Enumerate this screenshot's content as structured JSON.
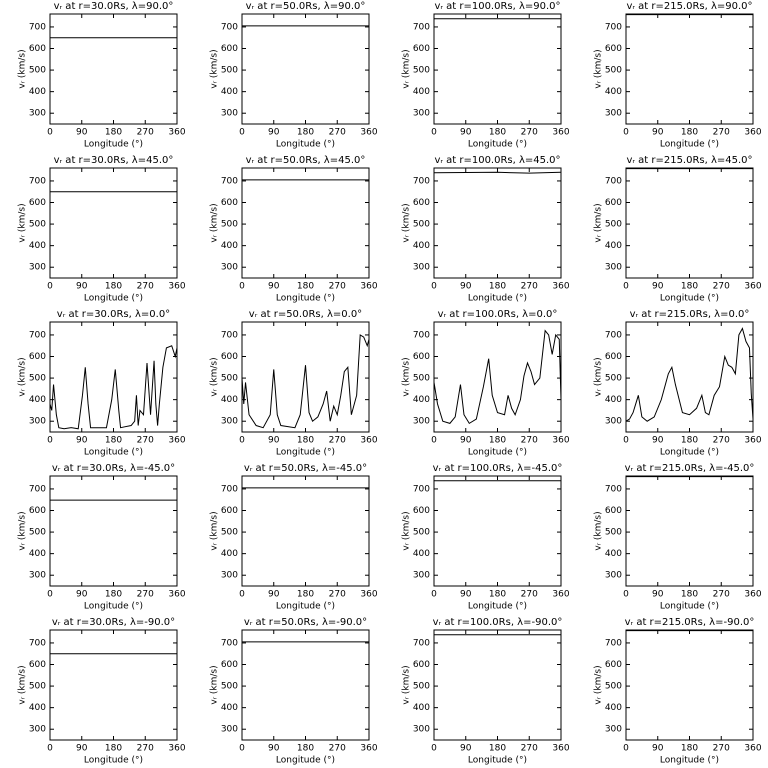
{
  "chart_data": [
    {
      "type": "line",
      "title": "vᵣ at r=30.0Rs, λ=90.0°",
      "xlabel": "Longitude (°)",
      "ylabel": "vᵣ (km/s)",
      "x": [
        0,
        360
      ],
      "values": [
        650,
        650
      ],
      "color": "#000000",
      "xlim": [
        0,
        360
      ],
      "ylim": [
        250,
        760
      ],
      "xticks": [
        0,
        90,
        180,
        270,
        360
      ],
      "yticks": [
        300,
        400,
        500,
        600,
        700
      ]
    },
    {
      "type": "line",
      "title": "vᵣ at r=50.0Rs, λ=90.0°",
      "xlabel": "Longitude (°)",
      "ylabel": "vᵣ (km/s)",
      "x": [
        0,
        360
      ],
      "values": [
        705,
        705
      ],
      "color": "#000000",
      "xlim": [
        0,
        360
      ],
      "ylim": [
        250,
        760
      ],
      "xticks": [
        0,
        90,
        180,
        270,
        360
      ],
      "yticks": [
        300,
        400,
        500,
        600,
        700
      ]
    },
    {
      "type": "line",
      "title": "vᵣ at r=100.0Rs, λ=90.0°",
      "xlabel": "Longitude (°)",
      "ylabel": "vᵣ (km/s)",
      "x": [
        0,
        360
      ],
      "values": [
        738,
        738
      ],
      "color": "#000000",
      "xlim": [
        0,
        360
      ],
      "ylim": [
        250,
        760
      ],
      "xticks": [
        0,
        90,
        180,
        270,
        360
      ],
      "yticks": [
        300,
        400,
        500,
        600,
        700
      ]
    },
    {
      "type": "line",
      "title": "vᵣ at r=215.0Rs, λ=90.0°",
      "xlabel": "Longitude (°)",
      "ylabel": "vᵣ (km/s)",
      "x": [
        0,
        360
      ],
      "values": [
        757,
        757
      ],
      "color": "#000000",
      "xlim": [
        0,
        360
      ],
      "ylim": [
        250,
        760
      ],
      "xticks": [
        0,
        90,
        180,
        270,
        360
      ],
      "yticks": [
        300,
        400,
        500,
        600,
        700
      ]
    },
    {
      "type": "line",
      "title": "vᵣ at r=30.0Rs, λ=45.0°",
      "xlabel": "Longitude (°)",
      "ylabel": "vᵣ (km/s)",
      "x": [
        0,
        360
      ],
      "values": [
        650,
        650
      ],
      "color": "#000000",
      "xlim": [
        0,
        360
      ],
      "ylim": [
        250,
        760
      ],
      "xticks": [
        0,
        90,
        180,
        270,
        360
      ],
      "yticks": [
        300,
        400,
        500,
        600,
        700
      ]
    },
    {
      "type": "line",
      "title": "vᵣ at r=50.0Rs, λ=45.0°",
      "xlabel": "Longitude (°)",
      "ylabel": "vᵣ (km/s)",
      "x": [
        0,
        360
      ],
      "values": [
        705,
        705
      ],
      "color": "#000000",
      "xlim": [
        0,
        360
      ],
      "ylim": [
        250,
        760
      ],
      "xticks": [
        0,
        90,
        180,
        270,
        360
      ],
      "yticks": [
        300,
        400,
        500,
        600,
        700
      ]
    },
    {
      "type": "line",
      "title": "vᵣ at r=100.0Rs, λ=45.0°",
      "xlabel": "Longitude (°)",
      "ylabel": "vᵣ (km/s)",
      "x": [
        0,
        180,
        270,
        360
      ],
      "values": [
        738,
        740,
        736,
        740
      ],
      "color": "#000000",
      "xlim": [
        0,
        360
      ],
      "ylim": [
        250,
        760
      ],
      "xticks": [
        0,
        90,
        180,
        270,
        360
      ],
      "yticks": [
        300,
        400,
        500,
        600,
        700
      ]
    },
    {
      "type": "line",
      "title": "vᵣ at r=215.0Rs, λ=45.0°",
      "xlabel": "Longitude (°)",
      "ylabel": "vᵣ (km/s)",
      "x": [
        0,
        360
      ],
      "values": [
        757,
        757
      ],
      "color": "#000000",
      "xlim": [
        0,
        360
      ],
      "ylim": [
        250,
        760
      ],
      "xticks": [
        0,
        90,
        180,
        270,
        360
      ],
      "yticks": [
        300,
        400,
        500,
        600,
        700
      ]
    },
    {
      "type": "line",
      "title": "vᵣ at r=30.0Rs, λ=0.0°",
      "xlabel": "Longitude (°)",
      "ylabel": "vᵣ (km/s)",
      "x": [
        0,
        5,
        10,
        18,
        25,
        40,
        60,
        80,
        92,
        100,
        108,
        115,
        130,
        160,
        175,
        185,
        195,
        200,
        230,
        240,
        245,
        250,
        255,
        265,
        275,
        285,
        295,
        300,
        305,
        310,
        320,
        330,
        345,
        355,
        360
      ],
      "values": [
        380,
        350,
        470,
        330,
        270,
        265,
        270,
        265,
        420,
        550,
        380,
        270,
        270,
        270,
        400,
        540,
        350,
        270,
        280,
        300,
        420,
        280,
        350,
        330,
        570,
        330,
        580,
        380,
        280,
        380,
        550,
        640,
        650,
        600,
        640
      ],
      "color": "#000000",
      "xlim": [
        0,
        360
      ],
      "ylim": [
        250,
        760
      ],
      "xticks": [
        0,
        90,
        180,
        270,
        360
      ],
      "yticks": [
        300,
        400,
        500,
        600,
        700
      ]
    },
    {
      "type": "line",
      "title": "vᵣ at r=50.0Rs, λ=0.0°",
      "xlabel": "Longitude (°)",
      "ylabel": "vᵣ (km/s)",
      "x": [
        0,
        5,
        10,
        20,
        40,
        60,
        80,
        90,
        100,
        110,
        150,
        165,
        180,
        190,
        200,
        215,
        230,
        240,
        250,
        260,
        270,
        280,
        290,
        300,
        310,
        325,
        335,
        345,
        355,
        360
      ],
      "values": [
        500,
        380,
        480,
        330,
        280,
        270,
        330,
        540,
        330,
        280,
        270,
        330,
        560,
        340,
        300,
        320,
        380,
        440,
        300,
        370,
        330,
        420,
        530,
        550,
        330,
        420,
        700,
        690,
        650,
        680
      ],
      "color": "#000000",
      "xlim": [
        0,
        360
      ],
      "ylim": [
        250,
        760
      ],
      "xticks": [
        0,
        90,
        180,
        270,
        360
      ],
      "yticks": [
        300,
        400,
        500,
        600,
        700
      ]
    },
    {
      "type": "line",
      "title": "vᵣ at r=100.0Rs, λ=0.0°",
      "xlabel": "Longitude (°)",
      "ylabel": "vᵣ (km/s)",
      "x": [
        0,
        10,
        25,
        45,
        60,
        75,
        85,
        100,
        120,
        140,
        155,
        165,
        180,
        200,
        210,
        220,
        230,
        245,
        255,
        265,
        275,
        285,
        300,
        315,
        325,
        335,
        345,
        355,
        360
      ],
      "values": [
        480,
        380,
        300,
        290,
        320,
        470,
        330,
        290,
        310,
        460,
        590,
        420,
        340,
        330,
        420,
        360,
        330,
        400,
        510,
        570,
        530,
        470,
        500,
        720,
        700,
        610,
        700,
        680,
        400
      ],
      "color": "#000000",
      "xlim": [
        0,
        360
      ],
      "ylim": [
        250,
        760
      ],
      "xticks": [
        0,
        90,
        180,
        270,
        360
      ],
      "yticks": [
        300,
        400,
        500,
        600,
        700
      ]
    },
    {
      "type": "line",
      "title": "vᵣ at r=215.0Rs, λ=0.0°",
      "xlabel": "Longitude (°)",
      "ylabel": "vᵣ (km/s)",
      "x": [
        0,
        10,
        20,
        35,
        45,
        60,
        80,
        100,
        120,
        130,
        140,
        160,
        180,
        200,
        215,
        225,
        235,
        250,
        265,
        280,
        290,
        300,
        310,
        320,
        330,
        340,
        350,
        355,
        360
      ],
      "values": [
        300,
        310,
        340,
        420,
        320,
        300,
        320,
        400,
        520,
        550,
        470,
        340,
        330,
        360,
        420,
        340,
        330,
        420,
        460,
        600,
        560,
        550,
        520,
        700,
        730,
        670,
        640,
        430,
        310
      ],
      "color": "#000000",
      "xlim": [
        0,
        360
      ],
      "ylim": [
        250,
        760
      ],
      "xticks": [
        0,
        90,
        180,
        270,
        360
      ],
      "yticks": [
        300,
        400,
        500,
        600,
        700
      ]
    },
    {
      "type": "line",
      "title": "vᵣ at r=30.0Rs, λ=-45.0°",
      "xlabel": "Longitude (°)",
      "ylabel": "vᵣ (km/s)",
      "x": [
        0,
        360
      ],
      "values": [
        648,
        648
      ],
      "color": "#000000",
      "xlim": [
        0,
        360
      ],
      "ylim": [
        250,
        760
      ],
      "xticks": [
        0,
        90,
        180,
        270,
        360
      ],
      "yticks": [
        300,
        400,
        500,
        600,
        700
      ]
    },
    {
      "type": "line",
      "title": "vᵣ at r=50.0Rs, λ=-45.0°",
      "xlabel": "Longitude (°)",
      "ylabel": "vᵣ (km/s)",
      "x": [
        0,
        360
      ],
      "values": [
        705,
        705
      ],
      "color": "#000000",
      "xlim": [
        0,
        360
      ],
      "ylim": [
        250,
        760
      ],
      "xticks": [
        0,
        90,
        180,
        270,
        360
      ],
      "yticks": [
        300,
        400,
        500,
        600,
        700
      ]
    },
    {
      "type": "line",
      "title": "vᵣ at r=100.0Rs, λ=-45.0°",
      "xlabel": "Longitude (°)",
      "ylabel": "vᵣ (km/s)",
      "x": [
        0,
        360
      ],
      "values": [
        738,
        738
      ],
      "color": "#000000",
      "xlim": [
        0,
        360
      ],
      "ylim": [
        250,
        760
      ],
      "xticks": [
        0,
        90,
        180,
        270,
        360
      ],
      "yticks": [
        300,
        400,
        500,
        600,
        700
      ]
    },
    {
      "type": "line",
      "title": "vᵣ at r=215.0Rs, λ=-45.0°",
      "xlabel": "Longitude (°)",
      "ylabel": "vᵣ (km/s)",
      "x": [
        0,
        360
      ],
      "values": [
        757,
        757
      ],
      "color": "#000000",
      "xlim": [
        0,
        360
      ],
      "ylim": [
        250,
        760
      ],
      "xticks": [
        0,
        90,
        180,
        270,
        360
      ],
      "yticks": [
        300,
        400,
        500,
        600,
        700
      ]
    },
    {
      "type": "line",
      "title": "vᵣ at r=30.0Rs, λ=-90.0°",
      "xlabel": "Longitude (°)",
      "ylabel": "vᵣ (km/s)",
      "x": [
        0,
        360
      ],
      "values": [
        650,
        650
      ],
      "color": "#000000",
      "xlim": [
        0,
        360
      ],
      "ylim": [
        250,
        760
      ],
      "xticks": [
        0,
        90,
        180,
        270,
        360
      ],
      "yticks": [
        300,
        400,
        500,
        600,
        700
      ]
    },
    {
      "type": "line",
      "title": "vᵣ at r=50.0Rs, λ=-90.0°",
      "xlabel": "Longitude (°)",
      "ylabel": "vᵣ (km/s)",
      "x": [
        0,
        360
      ],
      "values": [
        705,
        705
      ],
      "color": "#000000",
      "xlim": [
        0,
        360
      ],
      "ylim": [
        250,
        760
      ],
      "xticks": [
        0,
        90,
        180,
        270,
        360
      ],
      "yticks": [
        300,
        400,
        500,
        600,
        700
      ]
    },
    {
      "type": "line",
      "title": "vᵣ at r=100.0Rs, λ=-90.0°",
      "xlabel": "Longitude (°)",
      "ylabel": "vᵣ (km/s)",
      "x": [
        0,
        360
      ],
      "values": [
        738,
        738
      ],
      "color": "#000000",
      "xlim": [
        0,
        360
      ],
      "ylim": [
        250,
        760
      ],
      "xticks": [
        0,
        90,
        180,
        270,
        360
      ],
      "yticks": [
        300,
        400,
        500,
        600,
        700
      ]
    },
    {
      "type": "line",
      "title": "vᵣ at r=215.0Rs, λ=-90.0°",
      "xlabel": "Longitude (°)",
      "ylabel": "vᵣ (km/s)",
      "x": [
        0,
        360
      ],
      "values": [
        757,
        757
      ],
      "color": "#000000",
      "xlim": [
        0,
        360
      ],
      "ylim": [
        250,
        760
      ],
      "xticks": [
        0,
        90,
        180,
        270,
        360
      ],
      "yticks": [
        300,
        400,
        500,
        600,
        700
      ]
    }
  ]
}
